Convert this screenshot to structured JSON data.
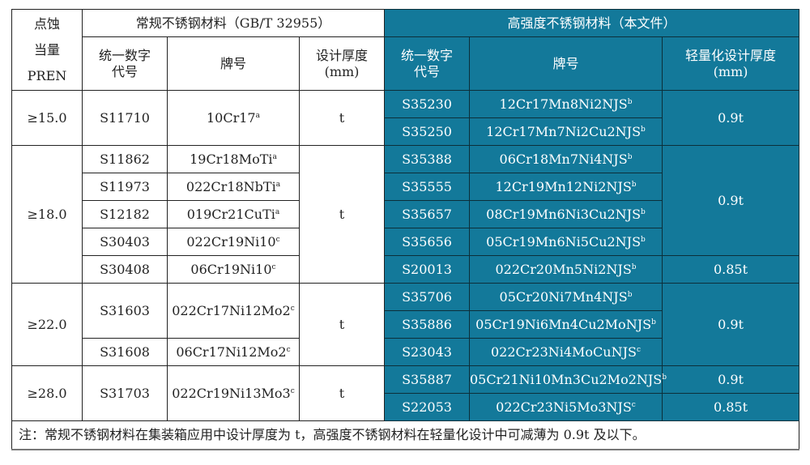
{
  "header": {
    "pren": "点蚀\n当量\nPREN",
    "conventional_title": "常规不锈钢材料（GB/T 32955）",
    "high_strength_title": "高强度不锈钢材料（本文件）",
    "code": "统一数字\n代号",
    "grade": "牌号",
    "design_thickness": "设计厚度\n(mm)",
    "light_thickness": "轻量化设计厚度\n(mm)"
  },
  "groups": [
    {
      "pren": "≥15.0",
      "thickness": "t",
      "left": [
        {
          "code": "S11710",
          "grade": "10Cr17",
          "sup": "a",
          "span": 2
        }
      ],
      "right": [
        {
          "code": "S35230",
          "grade": "12Cr17Mn8Ni2NJS",
          "sup": "b"
        },
        {
          "code": "S35250",
          "grade": "12Cr17Mn7Ni2Cu2NJS",
          "sup": "b"
        }
      ],
      "light": [
        {
          "value": "0.9t",
          "span": 2
        }
      ]
    },
    {
      "pren": "≥18.0",
      "thickness": "t",
      "left": [
        {
          "code": "S11862",
          "grade": "19Cr18MoTi",
          "sup": "a",
          "span": 1
        },
        {
          "code": "S11973",
          "grade": "022Cr18NbTi",
          "sup": "a",
          "span": 1
        },
        {
          "code": "S12182",
          "grade": "019Cr21CuTi",
          "sup": "a",
          "span": 1
        },
        {
          "code": "S30403",
          "grade": "022Cr19Ni10",
          "sup": "c",
          "span": 1
        },
        {
          "code": "S30408",
          "grade": "06Cr19Ni10",
          "sup": "c",
          "span": 1
        }
      ],
      "right": [
        {
          "code": "S35388",
          "grade": "06Cr18Mn7Ni4NJS",
          "sup": "b"
        },
        {
          "code": "S35555",
          "grade": "12Cr19Mn12Ni2NJS",
          "sup": "b"
        },
        {
          "code": "S35657",
          "grade": "08Cr19Mn6Ni3Cu2NJS",
          "sup": "b"
        },
        {
          "code": "S35656",
          "grade": "05Cr19Mn6Ni5Cu2NJS",
          "sup": "b"
        },
        {
          "code": "S20013",
          "grade": "022Cr20Mn5Ni2NJS",
          "sup": "b"
        }
      ],
      "light": [
        {
          "value": "0.9t",
          "span": 4
        },
        {
          "value": "0.85t",
          "span": 1
        }
      ]
    },
    {
      "pren": "≥22.0",
      "thickness": "t",
      "left": [
        {
          "code": "S31603",
          "grade": "022Cr17Ni12Mo2",
          "sup": "c",
          "span": 2
        },
        {
          "code": "S31608",
          "grade": "06Cr17Ni12Mo2",
          "sup": "c",
          "span": 1
        }
      ],
      "right": [
        {
          "code": "S35706",
          "grade": "05Cr20Ni7Mn4NJS",
          "sup": "b"
        },
        {
          "code": "S35886",
          "grade": "05Cr19Ni6Mn4Cu2MoNJS",
          "sup": "b"
        },
        {
          "code": "S23043",
          "grade": "022Cr23Ni4MoCuNJS",
          "sup": "c"
        }
      ],
      "light": [
        {
          "value": "0.9t",
          "span": 3
        }
      ]
    },
    {
      "pren": "≥28.0",
      "thickness": "t",
      "left": [
        {
          "code": "S31703",
          "grade": "022Cr19Ni13Mo3",
          "sup": "c",
          "span": 2
        }
      ],
      "right": [
        {
          "code": "S35887",
          "grade": "05Cr21Ni10Mn3Cu2Mo2NJS",
          "sup": "b"
        },
        {
          "code": "S22053",
          "grade": "022Cr23Ni5Mo3NJS",
          "sup": "c"
        }
      ],
      "light": [
        {
          "value": "0.9t",
          "span": 1
        },
        {
          "value": "0.85t",
          "span": 1
        }
      ]
    }
  ],
  "note": "注：常规不锈钢材料在集装箱应用中设计厚度为 t，高强度不锈钢材料在轻量化设计中可减薄为 0.9t 及以下。",
  "colors": {
    "high_strength_bg": "#13799a"
  }
}
